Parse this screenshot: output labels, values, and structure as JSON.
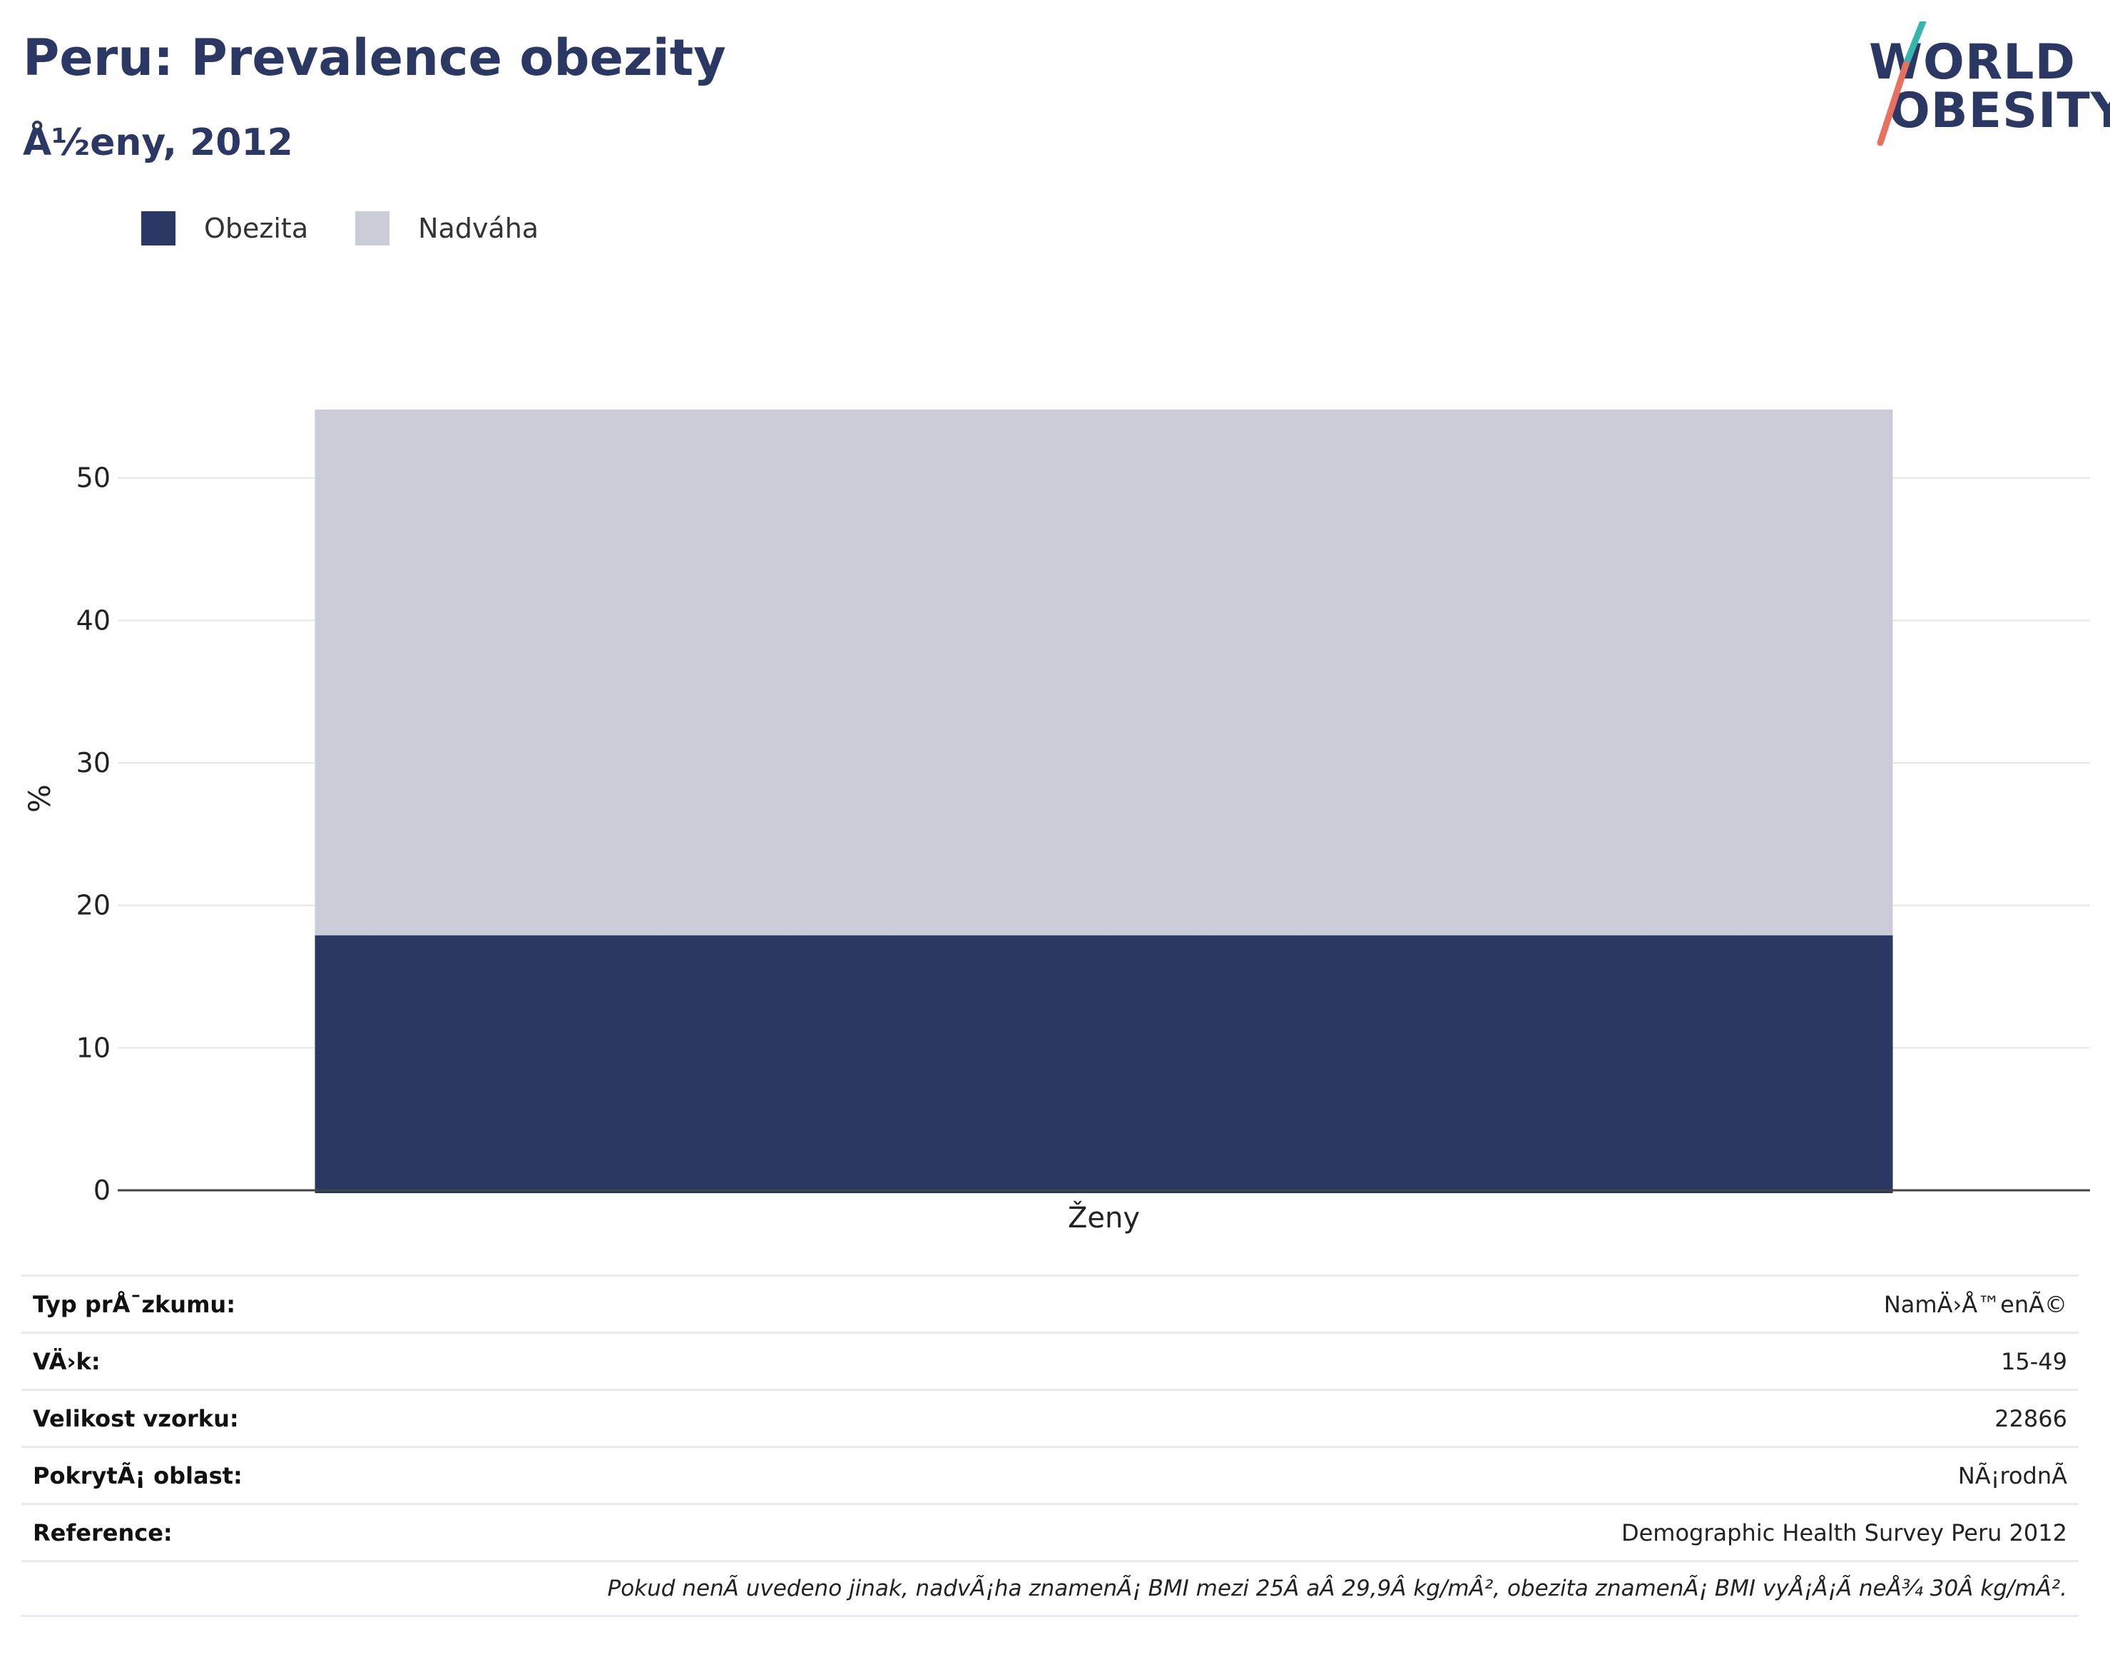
{
  "header": {
    "title": "Peru: Prevalence obezity",
    "subtitle": "Å½eny, 2012"
  },
  "logo": {
    "line1": "WORLD",
    "line2": "OBESITY",
    "colors": {
      "navy": "#2a3863",
      "teal": "#36b5b0",
      "coral": "#e8705f"
    }
  },
  "legend": {
    "items": [
      {
        "label": "Obezita",
        "color": "#2a3863"
      },
      {
        "label": "Nadváha",
        "color": "#cacdd8"
      }
    ]
  },
  "chart_data": {
    "type": "bar",
    "stacked": true,
    "categories": [
      "Ženy"
    ],
    "series": [
      {
        "name": "Obezita",
        "values": [
          17.9
        ],
        "color": "#2a3863"
      },
      {
        "name": "Nadváha",
        "values": [
          36.9
        ],
        "color": "#cacdd8"
      }
    ],
    "ylabel": "%",
    "ylim": [
      0,
      58
    ],
    "yticks": [
      0,
      10,
      20,
      30,
      40,
      50
    ],
    "grid": true,
    "legend_position": "top-left"
  },
  "info": {
    "rows": [
      {
        "label": "Typ prÅ¯zkumu:",
        "value": "NamÄ›Å™enÃ©"
      },
      {
        "label": "VÄ›k:",
        "value": "15-49"
      },
      {
        "label": "Velikost vzorku:",
        "value": "22866"
      },
      {
        "label": "PokrytÃ¡ oblast:",
        "value": "NÃ¡rodnÃ"
      },
      {
        "label": "Reference:",
        "value": "Demographic Health Survey Peru 2012"
      }
    ],
    "note": "Pokud nenÃ uvedeno jinak, nadvÃ¡ha znamenÃ¡ BMI mezi 25Â aÂ 29,9Â kg/mÂ², obezita znamenÃ¡ BMI vyÅ¡Å¡Ã neÅ¾ 30Â kg/mÂ²."
  }
}
